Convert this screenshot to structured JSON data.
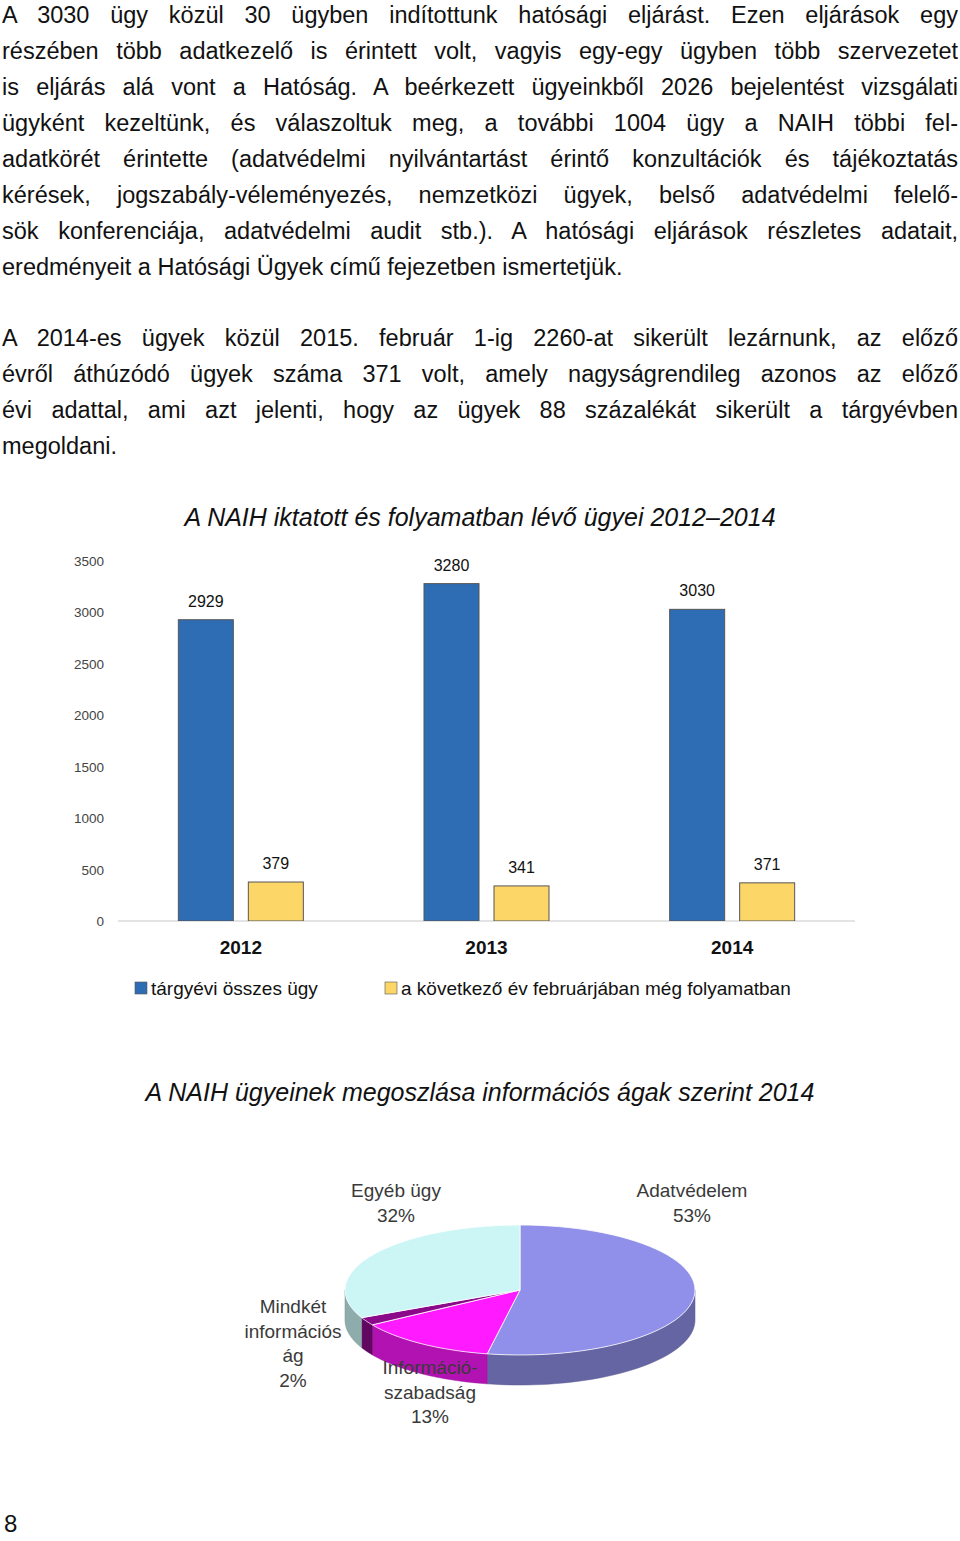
{
  "paragraphs": [
    [
      "A 3030 ügy közül 30 ügyben indítottunk hatósági eljárást. Ezen eljárások egy",
      "részében több adatkezelő is érintett volt, vagyis egy-egy ügyben több szervezetet",
      "is eljárás alá vont a Hatóság. A beérkezett ügyeinkből 2026 bejelentést vizsgálati",
      "ügyként kezeltünk, és válaszoltuk meg, a további 1004 ügy a NAIH többi fel-",
      "adatkörét érintette (adatvédelmi nyilvántartást érintő konzultációk és tájékoztatás",
      "kérések, jogszabály-véleményezés, nemzetközi ügyek, belső adatvédelmi felelő-",
      "sök konferenciája, adatvédelmi audit stb.). A hatósági eljárások részletes adatait,",
      "eredményeit a Hatósági Ügyek című fejezetben ismertetjük."
    ],
    [
      "A 2014-es ügyek közül 2015. február 1-ig 2260-at sikerült lezárnunk, az előző",
      "évről áthúzódó ügyek száma 371 volt, amely nagyságrendileg azonos az előző",
      "évi adattal, ami azt jelenti, hogy az ügyek 88 százalékát sikerült a tárgyévben",
      "megoldani."
    ]
  ],
  "chart_data": [
    {
      "type": "bar",
      "title": "A NAIH iktatott és folyamatban lévő ügyei 2012–2014",
      "categories": [
        "2012",
        "2013",
        "2014"
      ],
      "series": [
        {
          "name": "tárgyévi összes ügy",
          "color": "#2e6db4",
          "values": [
            2929,
            3280,
            3030
          ]
        },
        {
          "name": "a következő év februárjában még folyamatban",
          "color": "#fdd668",
          "values": [
            379,
            341,
            371
          ]
        }
      ],
      "ylim": [
        0,
        3500
      ],
      "yticks": [
        0,
        500,
        1000,
        1500,
        2000,
        2500,
        3000,
        3500
      ],
      "grid": false,
      "data_labels": true,
      "legend": "bottom"
    },
    {
      "type": "pie",
      "title": "A NAIH ügyeinek megoszlása információs ágak szerint 2014",
      "categories": [
        "Adatvédelem",
        "Információ-\nszabadság",
        "Mindkét\ninformációs\nág",
        "Egyéb ügy"
      ],
      "values": [
        53,
        13,
        2,
        32
      ],
      "value_labels": [
        "53%",
        "13%",
        "2%",
        "32%"
      ],
      "colors": [
        "#9090ea",
        "#ff1aff",
        "#8a0a8a",
        "#ccf5f5"
      ],
      "data_labels": true
    }
  ],
  "page_number": "8"
}
